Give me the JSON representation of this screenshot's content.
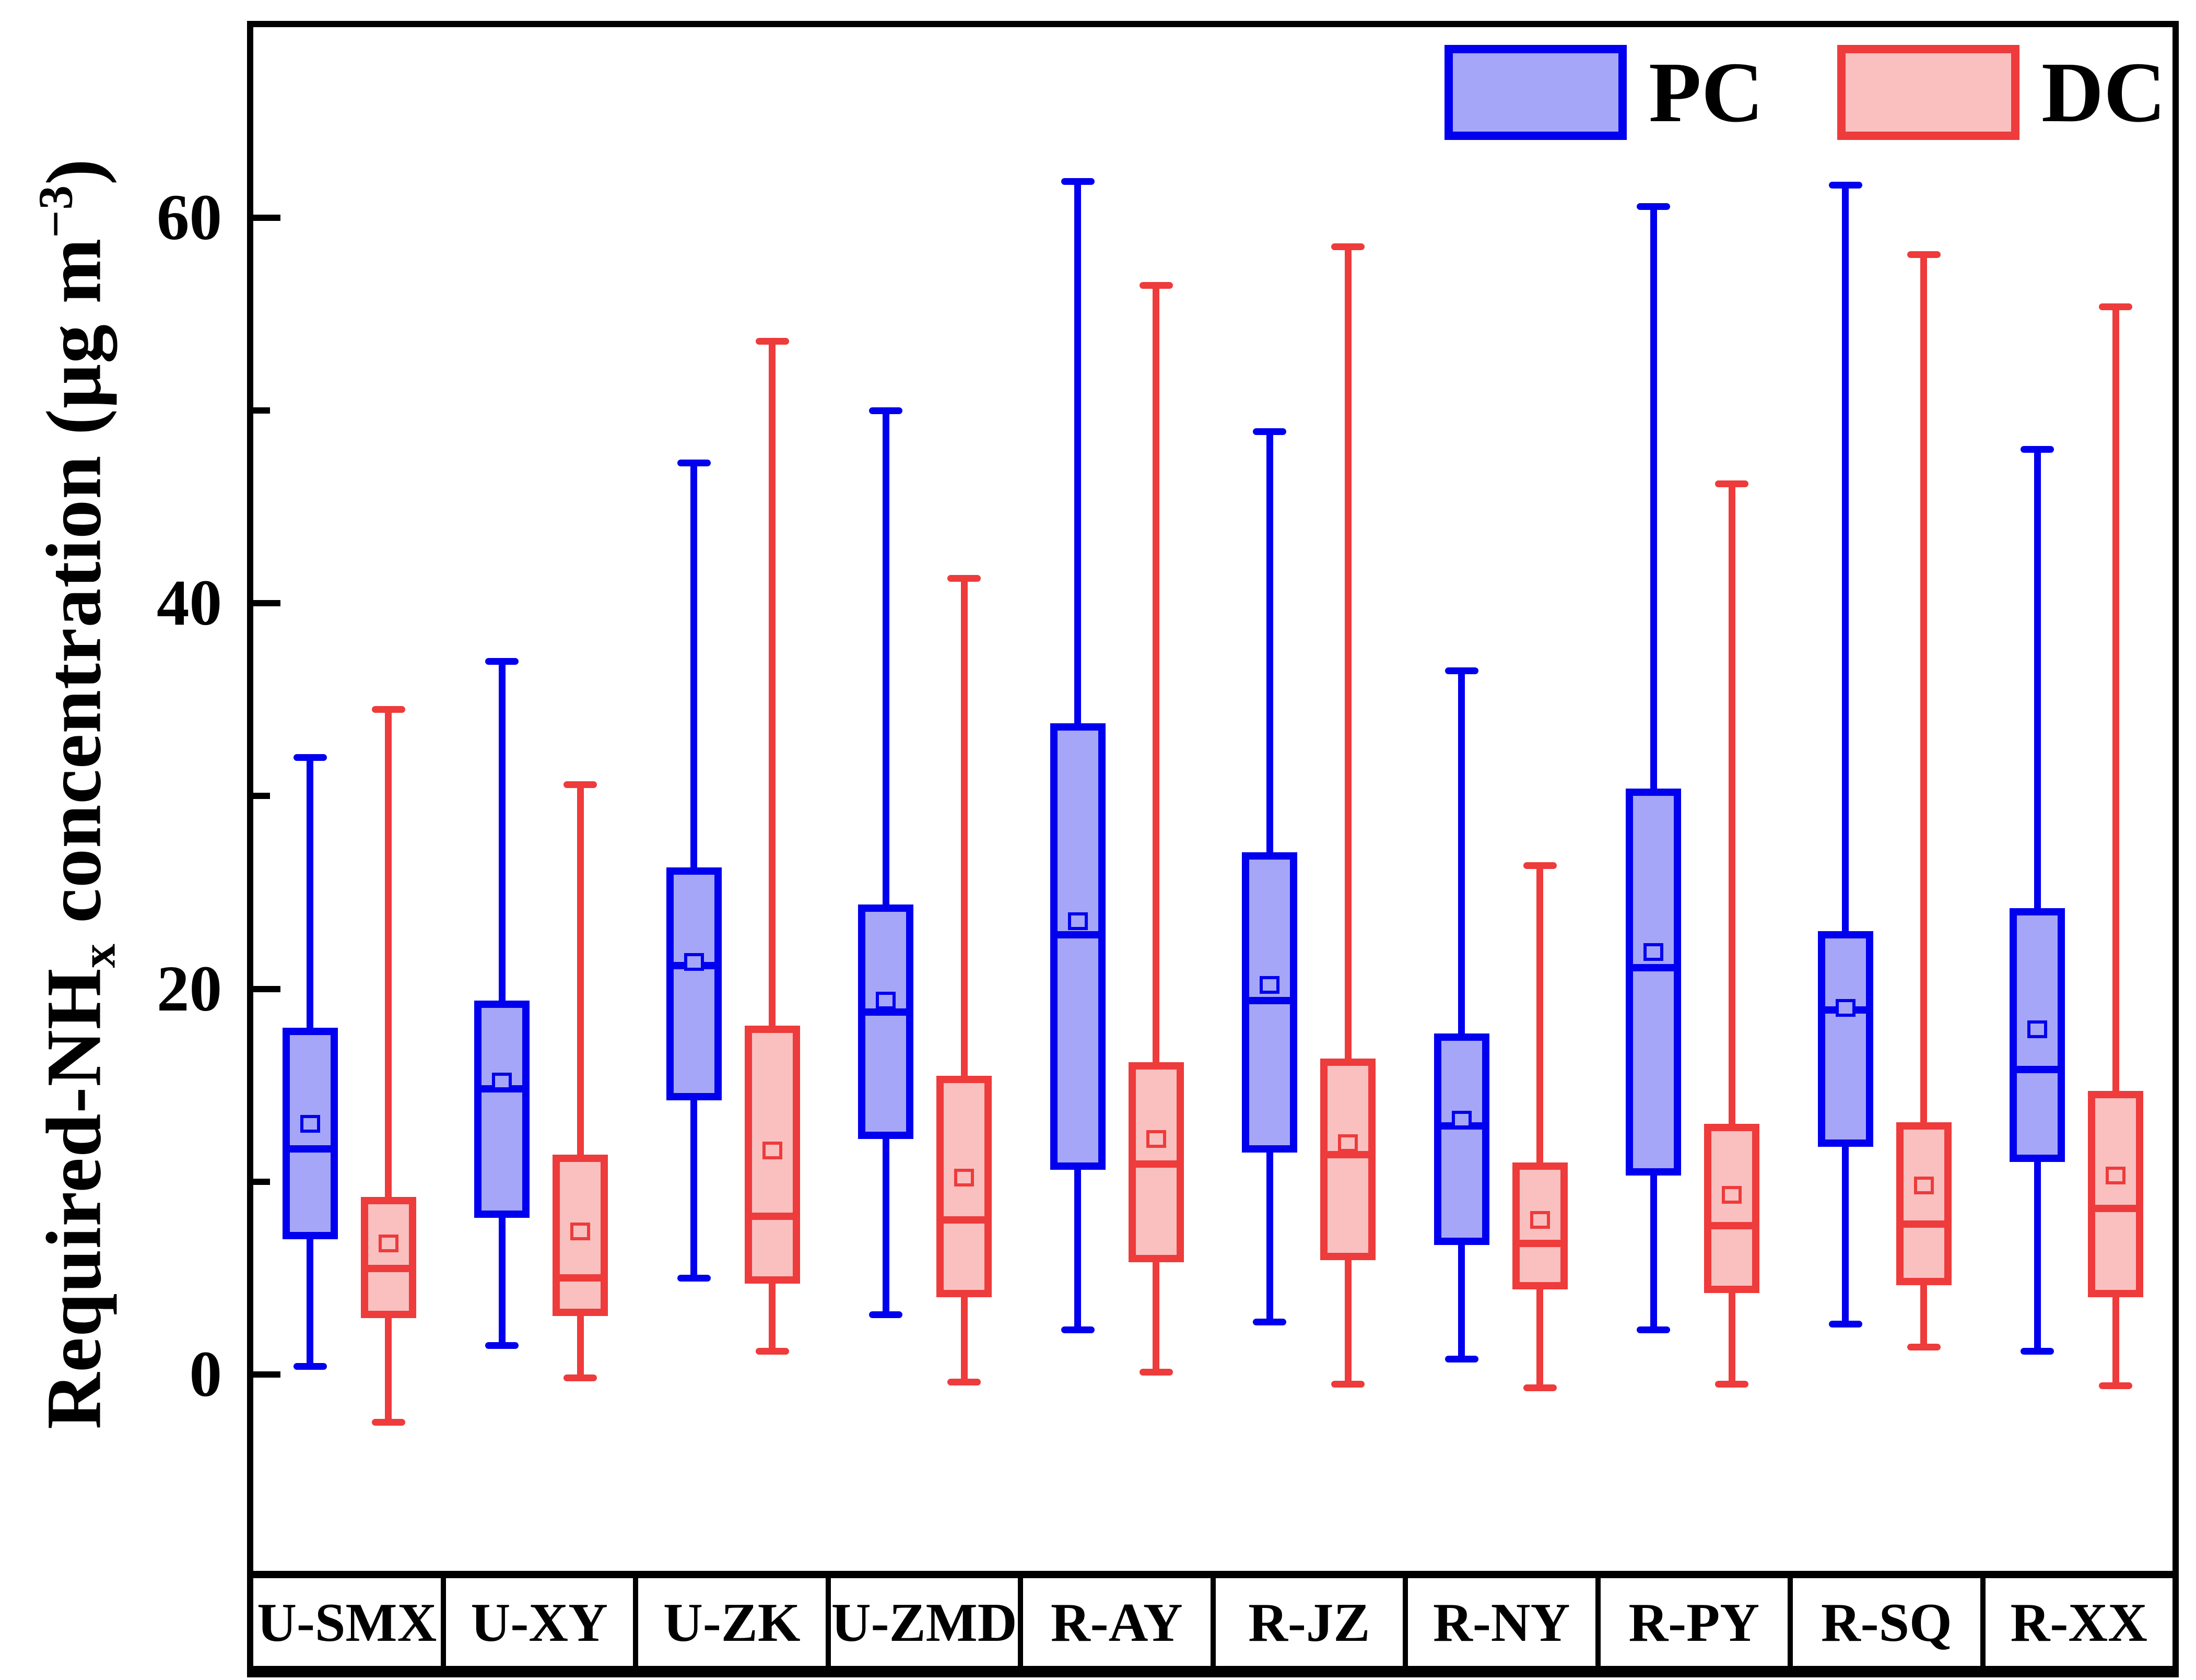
{
  "chart_data": {
    "type": "boxplot",
    "title": "",
    "ylabel_parts": {
      "prefix": "Required-NH",
      "subscript": "x",
      "middle": " concentration (μg m",
      "superscript": "−3",
      "suffix": ")"
    },
    "ylim": [
      -10.2,
      69.9
    ],
    "yticks_major": [
      0,
      20,
      40,
      60
    ],
    "ytick_labels": [
      "0",
      "20",
      "40",
      "60"
    ],
    "yticks_minor": [
      10,
      30,
      50
    ],
    "grid": false,
    "legend_position": "top-right-inside",
    "categories": [
      "U-SMX",
      "U-XY",
      "U-ZK",
      "U-ZMD",
      "R-AY",
      "R-JZ",
      "R-NY",
      "R-PY",
      "R-SQ",
      "R-XX"
    ],
    "series": [
      {
        "name": "PC",
        "edge_color": "#0000ee",
        "fill_color": "#a6a6f8",
        "boxes": [
          {
            "category": "U-SMX",
            "min": 0.4,
            "q1": 7.2,
            "median": 11.7,
            "mean": 13.0,
            "q3": 17.8,
            "max": 32.0
          },
          {
            "category": "U-XY",
            "min": 1.5,
            "q1": 8.3,
            "median": 14.8,
            "mean": 15.2,
            "q3": 19.2,
            "max": 37.0
          },
          {
            "category": "U-ZK",
            "min": 5.0,
            "q1": 14.4,
            "median": 21.2,
            "mean": 21.4,
            "q3": 26.1,
            "max": 47.3
          },
          {
            "category": "U-ZMD",
            "min": 3.1,
            "q1": 12.4,
            "median": 18.8,
            "mean": 19.4,
            "q3": 24.2,
            "max": 50.0
          },
          {
            "category": "R-AY",
            "min": 2.3,
            "q1": 10.8,
            "median": 22.8,
            "mean": 23.5,
            "q3": 33.6,
            "max": 61.9
          },
          {
            "category": "R-JZ",
            "min": 2.7,
            "q1": 11.7,
            "median": 19.4,
            "mean": 20.2,
            "q3": 26.9,
            "max": 48.9
          },
          {
            "category": "R-NY",
            "min": 0.8,
            "q1": 6.9,
            "median": 12.9,
            "mean": 13.2,
            "q3": 17.5,
            "max": 36.5
          },
          {
            "category": "R-PY",
            "min": 2.3,
            "q1": 10.5,
            "median": 21.1,
            "mean": 21.9,
            "q3": 30.2,
            "max": 60.6
          },
          {
            "category": "R-SQ",
            "min": 2.6,
            "q1": 12.0,
            "median": 18.9,
            "mean": 19.0,
            "q3": 22.8,
            "max": 61.7
          },
          {
            "category": "R-XX",
            "min": 1.2,
            "q1": 11.2,
            "median": 15.8,
            "mean": 17.9,
            "q3": 24.0,
            "max": 48.0
          }
        ]
      },
      {
        "name": "DC",
        "edge_color": "#ee3b3b",
        "fill_color": "#fac0c0",
        "boxes": [
          {
            "category": "U-SMX",
            "min": -2.5,
            "q1": 3.1,
            "median": 5.5,
            "mean": 6.8,
            "q3": 9.0,
            "max": 34.5
          },
          {
            "category": "U-XY",
            "min": -0.2,
            "q1": 3.2,
            "median": 5.0,
            "mean": 7.4,
            "q3": 11.2,
            "max": 30.6
          },
          {
            "category": "U-ZK",
            "min": 1.2,
            "q1": 4.9,
            "median": 8.2,
            "mean": 11.6,
            "q3": 17.9,
            "max": 53.6
          },
          {
            "category": "U-ZMD",
            "min": -0.4,
            "q1": 4.2,
            "median": 8.0,
            "mean": 10.2,
            "q3": 15.3,
            "max": 41.3
          },
          {
            "category": "R-AY",
            "min": 0.1,
            "q1": 6.0,
            "median": 10.9,
            "mean": 12.2,
            "q3": 16.0,
            "max": 56.5
          },
          {
            "category": "R-JZ",
            "min": -0.5,
            "q1": 6.1,
            "median": 11.4,
            "mean": 12.0,
            "q3": 16.2,
            "max": 58.5
          },
          {
            "category": "R-NY",
            "min": -0.7,
            "q1": 4.6,
            "median": 6.8,
            "mean": 8.0,
            "q3": 10.8,
            "max": 26.4
          },
          {
            "category": "R-PY",
            "min": -0.5,
            "q1": 4.4,
            "median": 7.7,
            "mean": 9.3,
            "q3": 12.8,
            "max": 46.2
          },
          {
            "category": "R-SQ",
            "min": 1.4,
            "q1": 4.8,
            "median": 7.8,
            "mean": 9.8,
            "q3": 12.9,
            "max": 58.1
          },
          {
            "category": "R-XX",
            "min": -0.6,
            "q1": 4.2,
            "median": 8.6,
            "mean": 10.3,
            "q3": 14.5,
            "max": 55.4
          }
        ]
      }
    ]
  },
  "colors": {
    "frame": "#000000",
    "background": "#ffffff",
    "text": "#000000"
  }
}
